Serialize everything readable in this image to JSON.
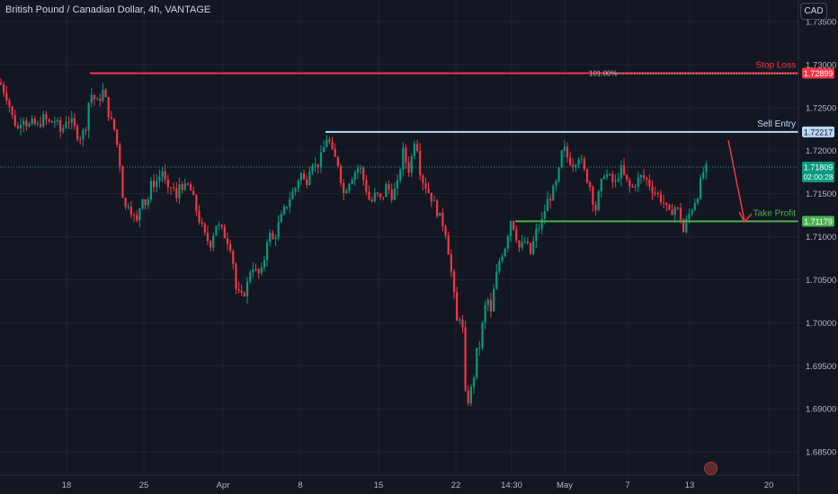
{
  "header": {
    "symbol_title": "British Pound / Canadian Dollar, 4h, VANTAGE",
    "currency_button": "CAD"
  },
  "chart_data": {
    "type": "candlestick",
    "title": "British Pound / Canadian Dollar, 4h, VANTAGE",
    "ylim": [
      1.6823,
      1.7375
    ],
    "y_ticks": [
      1.735,
      1.73,
      1.725,
      1.72,
      1.715,
      1.71,
      1.705,
      1.7,
      1.695,
      1.69,
      1.685
    ],
    "x_ticks": [
      "18",
      "25",
      "Apr",
      "8",
      "15",
      "22",
      "14:30",
      "May",
      "7",
      "13",
      "20"
    ],
    "current_price": "1.71809",
    "countdown": "02:00:28",
    "levels": [
      {
        "name": "Stop Loss",
        "value": 1.72899,
        "label": "1.72899",
        "color": "#f23645",
        "note": "101.00%"
      },
      {
        "name": "Sell Entry",
        "value": 1.72217,
        "label": "1.72217",
        "color": "#bbd9fb"
      },
      {
        "name": "Take Profit",
        "value": 1.71179,
        "label": "1.71179",
        "color": "#4caf50"
      }
    ],
    "up_color": "#089981",
    "down_color": "#f23645",
    "keypoints": [
      [
        0,
        1.7279
      ],
      [
        8,
        1.7262
      ],
      [
        14,
        1.7238
      ],
      [
        20,
        1.7225
      ],
      [
        25,
        1.7242
      ],
      [
        31,
        1.7228
      ],
      [
        36,
        1.7232
      ],
      [
        42,
        1.7228
      ],
      [
        48,
        1.7238
      ],
      [
        55,
        1.7232
      ],
      [
        62,
        1.7235
      ],
      [
        68,
        1.722
      ],
      [
        74,
        1.7238
      ],
      [
        80,
        1.7232
      ],
      [
        88,
        1.7215
      ],
      [
        95,
        1.7225
      ],
      [
        100,
        1.7268
      ],
      [
        108,
        1.7255
      ],
      [
        115,
        1.727
      ],
      [
        122,
        1.7238
      ],
      [
        128,
        1.7222
      ],
      [
        134,
        1.718
      ],
      [
        138,
        1.713
      ],
      [
        143,
        1.714
      ],
      [
        148,
        1.7125
      ],
      [
        152,
        1.7115
      ],
      [
        158,
        1.715
      ],
      [
        163,
        1.7135
      ],
      [
        168,
        1.716
      ],
      [
        175,
        1.7165
      ],
      [
        181,
        1.7178
      ],
      [
        186,
        1.715
      ],
      [
        192,
        1.7162
      ],
      [
        196,
        1.714
      ],
      [
        200,
        1.7165
      ],
      [
        205,
        1.7155
      ],
      [
        210,
        1.716
      ],
      [
        216,
        1.714
      ],
      [
        222,
        1.7118
      ],
      [
        228,
        1.71
      ],
      [
        234,
        1.7092
      ],
      [
        240,
        1.7115
      ],
      [
        246,
        1.7108
      ],
      [
        252,
        1.7098
      ],
      [
        258,
        1.7085
      ],
      [
        262,
        1.704
      ],
      [
        268,
        1.7028
      ],
      [
        274,
        1.704
      ],
      [
        280,
        1.707
      ],
      [
        286,
        1.7055
      ],
      [
        292,
        1.706
      ],
      [
        298,
        1.7105
      ],
      [
        304,
        1.7095
      ],
      [
        310,
        1.7115
      ],
      [
        316,
        1.713
      ],
      [
        322,
        1.7145
      ],
      [
        328,
        1.7155
      ],
      [
        334,
        1.7175
      ],
      [
        340,
        1.716
      ],
      [
        346,
        1.719
      ],
      [
        352,
        1.718
      ],
      [
        358,
        1.7195
      ],
      [
        364,
        1.7218
      ],
      [
        370,
        1.7195
      ],
      [
        376,
        1.7185
      ],
      [
        382,
        1.715
      ],
      [
        388,
        1.7165
      ],
      [
        394,
        1.7175
      ],
      [
        400,
        1.7182
      ],
      [
        406,
        1.716
      ],
      [
        412,
        1.7138
      ],
      [
        418,
        1.715
      ],
      [
        424,
        1.7142
      ],
      [
        430,
        1.716
      ],
      [
        436,
        1.7148
      ],
      [
        442,
        1.716
      ],
      [
        448,
        1.72
      ],
      [
        452,
        1.7185
      ],
      [
        456,
        1.7175
      ],
      [
        460,
        1.7215
      ],
      [
        464,
        1.7205
      ],
      [
        468,
        1.717
      ],
      [
        474,
        1.7158
      ],
      [
        480,
        1.7145
      ],
      [
        486,
        1.713
      ],
      [
        490,
        1.712
      ],
      [
        495,
        1.711
      ],
      [
        500,
        1.7075
      ],
      [
        504,
        1.704
      ],
      [
        508,
        1.7
      ],
      [
        512,
        1.701
      ],
      [
        516,
        1.698
      ],
      [
        518,
        1.69
      ],
      [
        522,
        1.6915
      ],
      [
        526,
        1.693
      ],
      [
        530,
        1.6965
      ],
      [
        534,
        1.6975
      ],
      [
        538,
        1.701
      ],
      [
        542,
        1.703
      ],
      [
        546,
        1.701
      ],
      [
        550,
        1.7045
      ],
      [
        556,
        1.7075
      ],
      [
        562,
        1.709
      ],
      [
        568,
        1.712
      ],
      [
        572,
        1.711
      ],
      [
        578,
        1.7085
      ],
      [
        584,
        1.7095
      ],
      [
        590,
        1.708
      ],
      [
        596,
        1.7105
      ],
      [
        602,
        1.7115
      ],
      [
        608,
        1.714
      ],
      [
        614,
        1.715
      ],
      [
        620,
        1.7165
      ],
      [
        626,
        1.7205
      ],
      [
        632,
        1.719
      ],
      [
        638,
        1.7185
      ],
      [
        644,
        1.7195
      ],
      [
        650,
        1.7175
      ],
      [
        656,
        1.716
      ],
      [
        662,
        1.713
      ],
      [
        666,
        1.715
      ],
      [
        672,
        1.7175
      ],
      [
        678,
        1.7168
      ],
      [
        684,
        1.716
      ],
      [
        690,
        1.718
      ],
      [
        696,
        1.7165
      ],
      [
        702,
        1.7155
      ],
      [
        708,
        1.7165
      ],
      [
        714,
        1.717
      ],
      [
        720,
        1.7165
      ],
      [
        726,
        1.7155
      ],
      [
        732,
        1.7148
      ],
      [
        738,
        1.714
      ],
      [
        744,
        1.7125
      ],
      [
        750,
        1.7135
      ],
      [
        756,
        1.7128
      ],
      [
        760,
        1.7105
      ],
      [
        764,
        1.712
      ],
      [
        770,
        1.7135
      ],
      [
        776,
        1.715
      ],
      [
        782,
        1.7175
      ],
      [
        788,
        1.7181
      ]
    ]
  }
}
